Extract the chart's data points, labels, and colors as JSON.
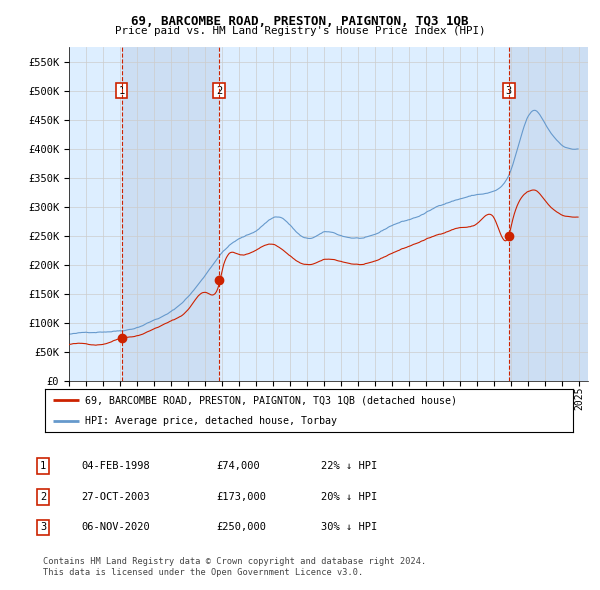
{
  "title": "69, BARCOMBE ROAD, PRESTON, PAIGNTON, TQ3 1QB",
  "subtitle": "Price paid vs. HM Land Registry's House Price Index (HPI)",
  "hpi_color": "#6699cc",
  "red_color": "#cc2200",
  "vline_color": "#cc2200",
  "bg_color": "#ddeeff",
  "shade_color": "#c8dcf0",
  "plot_bg": "#ffffff",
  "grid_color": "#cccccc",
  "ylim": [
    0,
    575000
  ],
  "xlim_min": 1995.0,
  "xlim_max": 2025.5,
  "yticks": [
    0,
    50000,
    100000,
    150000,
    200000,
    250000,
    300000,
    350000,
    400000,
    450000,
    500000,
    550000
  ],
  "ytick_labels": [
    "£0",
    "£50K",
    "£100K",
    "£150K",
    "£200K",
    "£250K",
    "£300K",
    "£350K",
    "£400K",
    "£450K",
    "£500K",
    "£550K"
  ],
  "xticks": [
    1995,
    1996,
    1997,
    1998,
    1999,
    2000,
    2001,
    2002,
    2003,
    2004,
    2005,
    2006,
    2007,
    2008,
    2009,
    2010,
    2011,
    2012,
    2013,
    2014,
    2015,
    2016,
    2017,
    2018,
    2019,
    2020,
    2021,
    2022,
    2023,
    2024,
    2025
  ],
  "sale1_year": 1998.09,
  "sale1_value": 74000,
  "sale2_year": 2003.82,
  "sale2_value": 173000,
  "sale3_year": 2020.85,
  "sale3_value": 250000,
  "legend_label_red": "69, BARCOMBE ROAD, PRESTON, PAIGNTON, TQ3 1QB (detached house)",
  "legend_label_hpi": "HPI: Average price, detached house, Torbay",
  "table_rows": [
    {
      "num": "1",
      "date": "04-FEB-1998",
      "price": "£74,000",
      "pct": "22% ↓ HPI"
    },
    {
      "num": "2",
      "date": "27-OCT-2003",
      "price": "£173,000",
      "pct": "20% ↓ HPI"
    },
    {
      "num": "3",
      "date": "06-NOV-2020",
      "price": "£250,000",
      "pct": "30% ↓ HPI"
    }
  ],
  "footnote1": "Contains HM Land Registry data © Crown copyright and database right 2024.",
  "footnote2": "This data is licensed under the Open Government Licence v3.0."
}
